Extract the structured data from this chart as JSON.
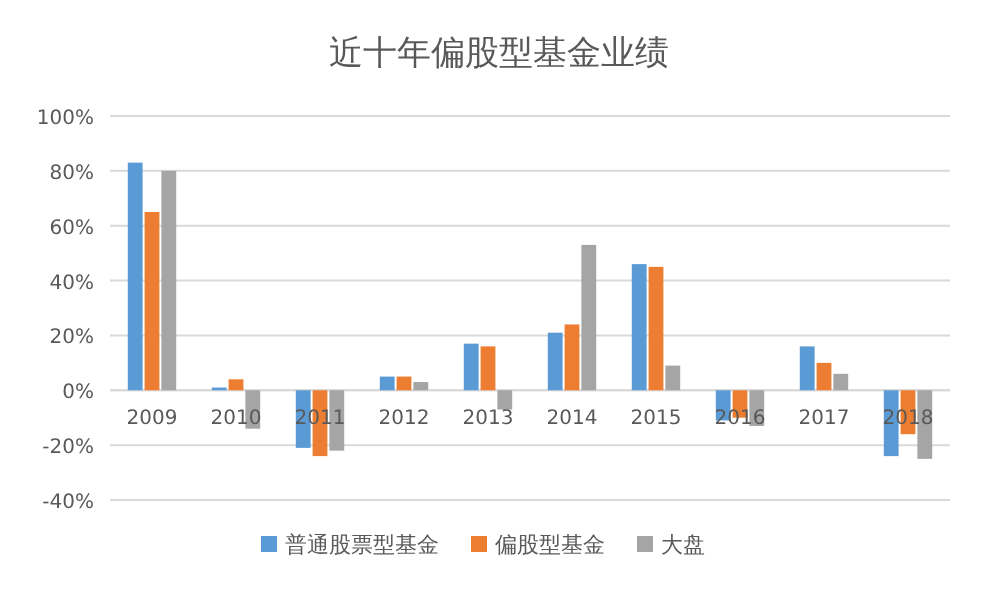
{
  "chart_data": {
    "type": "bar",
    "title": "近十年偏股型基金业绩",
    "categories": [
      "2009",
      "2010",
      "2011",
      "2012",
      "2013",
      "2014",
      "2015",
      "2016",
      "2017",
      "2018"
    ],
    "series": [
      {
        "name": "普通股票型基金",
        "color": "#5b9bd5",
        "values": [
          83,
          1,
          -21,
          5,
          17,
          21,
          46,
          -11,
          16,
          -24
        ]
      },
      {
        "name": "偏股型基金",
        "color": "#ed7d31",
        "values": [
          65,
          4,
          -24,
          5,
          16,
          24,
          45,
          -10,
          10,
          -16
        ]
      },
      {
        "name": "大盘",
        "color": "#a5a5a5",
        "values": [
          80,
          -14,
          -22,
          3,
          -7,
          53,
          9,
          -13,
          6,
          -25
        ]
      }
    ],
    "ylim": [
      -40,
      100
    ],
    "yticks": [
      {
        "value": -40,
        "label": "-40%"
      },
      {
        "value": -20,
        "label": "-20%"
      },
      {
        "value": 0,
        "label": "0%"
      },
      {
        "value": 20,
        "label": "20%"
      },
      {
        "value": 40,
        "label": "40%"
      },
      {
        "value": 60,
        "label": "60%"
      },
      {
        "value": 80,
        "label": "80%"
      },
      {
        "value": 100,
        "label": "100%"
      }
    ],
    "grid": "y",
    "legend": "bottom"
  }
}
